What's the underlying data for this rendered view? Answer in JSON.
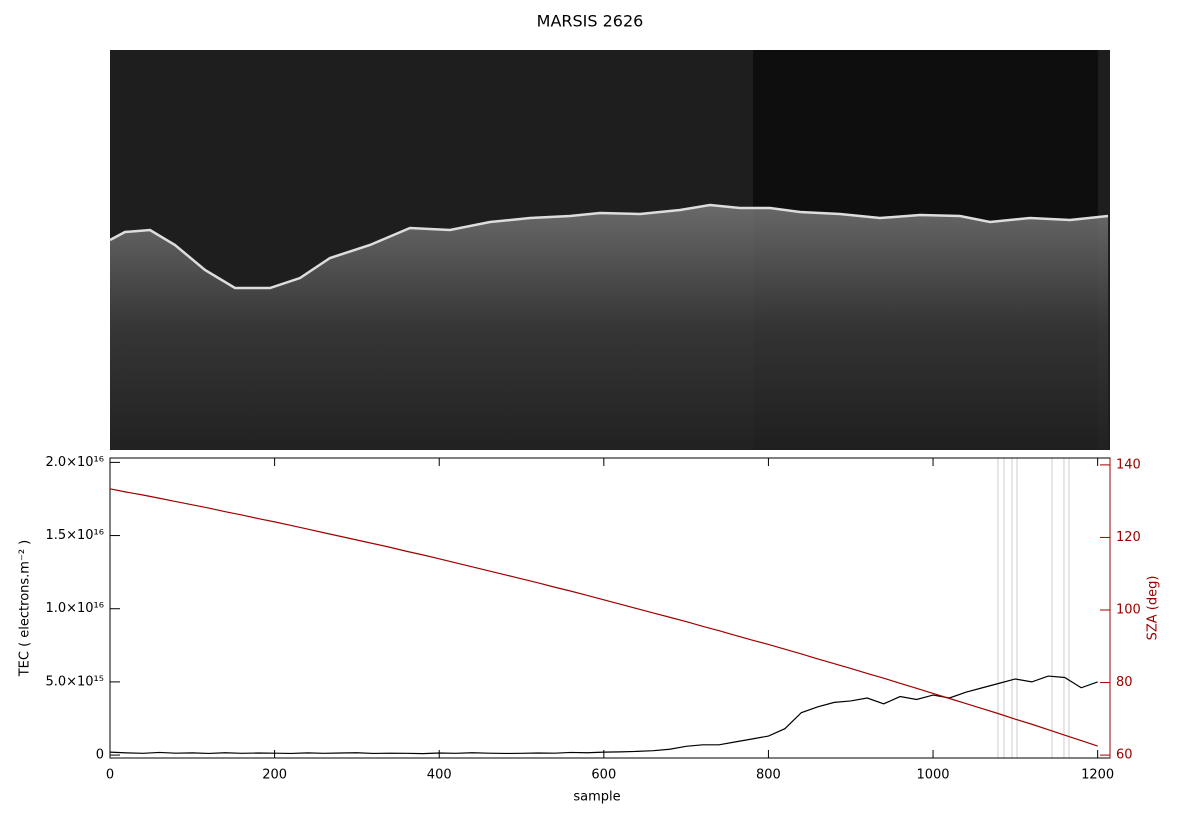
{
  "chart_data": {
    "type": "line",
    "title": "MARSIS 2626",
    "xlabel": "sample",
    "ylabel": "TEC ( electrons.m⁻² )",
    "y2label": "SZA (deg)",
    "x": [
      0,
      20,
      40,
      60,
      80,
      100,
      120,
      140,
      160,
      180,
      200,
      220,
      240,
      260,
      280,
      300,
      320,
      340,
      360,
      380,
      400,
      420,
      440,
      460,
      480,
      500,
      520,
      540,
      560,
      580,
      600,
      620,
      640,
      660,
      680,
      700,
      720,
      740,
      760,
      780,
      800,
      820,
      840,
      860,
      880,
      900,
      920,
      940,
      960,
      980,
      1000,
      1020,
      1040,
      1060,
      1080,
      1100,
      1120,
      1140,
      1160,
      1180,
      1200
    ],
    "series": [
      {
        "color": "#000000",
        "values": [
          200000000000000.0,
          150000000000000.0,
          120000000000000.0,
          180000000000000.0,
          130000000000000.0,
          150000000000000.0,
          110000000000000.0,
          160000000000000.0,
          120000000000000.0,
          140000000000000.0,
          130000000000000.0,
          110000000000000.0,
          150000000000000.0,
          120000000000000.0,
          140000000000000.0,
          160000000000000.0,
          110000000000000.0,
          130000000000000.0,
          120000000000000.0,
          100000000000000.0,
          140000000000000.0,
          120000000000000.0,
          160000000000000.0,
          130000000000000.0,
          110000000000000.0,
          120000000000000.0,
          140000000000000.0,
          130000000000000.0,
          180000000000000.0,
          160000000000000.0,
          200000000000000.0,
          220000000000000.0,
          250000000000000.0,
          300000000000000.0,
          400000000000000.0,
          600000000000000.0,
          700000000000000.0,
          700000000000000.0,
          900000000000000.0,
          1100000000000000.0,
          1300000000000000.0,
          1800000000000000.0,
          2900000000000000.0,
          3300000000000000.0,
          3600000000000000.0,
          3700000000000000.0,
          3900000000000000.0,
          3500000000000000.0,
          4000000000000000.0,
          3800000000000000.0,
          4100000000000000.0,
          3900000000000000.0,
          4300000000000000.0,
          4600000000000000.0,
          4900000000000000.0,
          5200000000000000.0,
          5000000000000000.0,
          5400000000000000.0,
          5300000000000000.0,
          4600000000000000.0,
          5000000000000000.0
        ]
      },
      {
        "color": "#a00000",
        "axis": "y2",
        "values": [
          133.4,
          132.5,
          131.7,
          130.8,
          129.9,
          129.0,
          128.1,
          127.1,
          126.2,
          125.2,
          124.3,
          123.3,
          122.3,
          121.3,
          120.3,
          119.3,
          118.3,
          117.3,
          116.2,
          115.2,
          114.1,
          113.0,
          111.9,
          110.8,
          109.7,
          108.6,
          107.5,
          106.3,
          105.2,
          104.0,
          102.8,
          101.6,
          100.4,
          99.2,
          98.0,
          96.8,
          95.5,
          94.3,
          93.0,
          91.7,
          90.5,
          89.2,
          87.9,
          86.5,
          85.2,
          83.9,
          82.5,
          81.2,
          79.8,
          78.4,
          77.0,
          75.6,
          74.2,
          72.8,
          71.4,
          69.9,
          68.5,
          67.0,
          65.5,
          64.0,
          62.5
        ]
      }
    ],
    "xlim": [
      0,
      1215
    ],
    "xticks": [
      0,
      200,
      400,
      600,
      800,
      1000,
      1200
    ],
    "ylim": [
      -200000000000000.0,
      2.03e+16
    ],
    "yticks": [
      0,
      {
        "value": 5000000000000000.0,
        "label": "5.0×10¹⁵"
      },
      {
        "value": 1e+16,
        "label": "1.0×10¹⁶"
      },
      {
        "value": 1.5e+16,
        "label": "1.5×10¹⁶"
      },
      {
        "value": 2e+16,
        "label": "2.0×10¹⁶"
      }
    ],
    "y2lim": [
      59.2,
      141.9
    ],
    "y2ticks": [
      60,
      80,
      100,
      120,
      140
    ],
    "y2color": "#a00000"
  }
}
